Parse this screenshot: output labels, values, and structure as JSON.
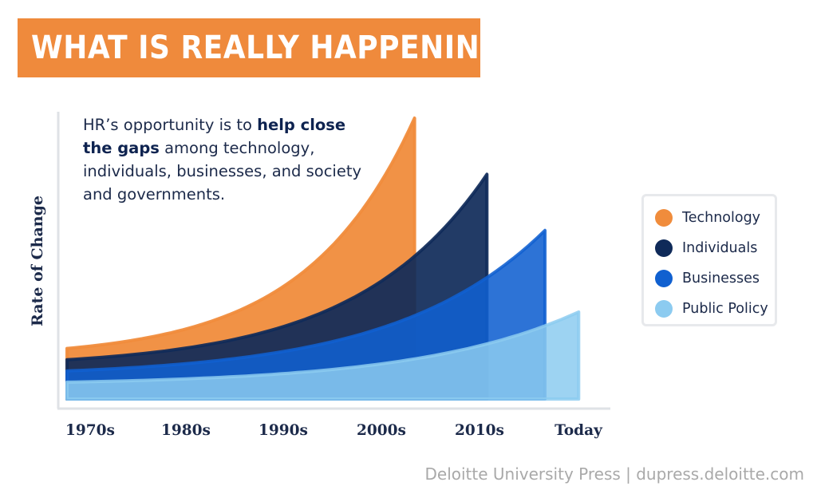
{
  "header": {
    "title": "WHAT IS REALLY HAPPENING?"
  },
  "annotation": {
    "part1": "HR’s opportunity is to ",
    "bold": "help close the gaps",
    "part2": " among technology, individuals, businesses, and society and governments."
  },
  "footer": {
    "credit": "Deloitte University Press | dupress.deloitte.com"
  },
  "colors": {
    "banner": "#ef8a3c",
    "technology": "#f08c3c",
    "individuals": "#0f2a59",
    "businesses": "#1060d0",
    "public_policy": "#8ccbf0"
  },
  "chart_data": {
    "type": "area",
    "title": "",
    "xlabel": "",
    "ylabel": "Rate of Change",
    "categories": [
      "1970s",
      "1980s",
      "1990s",
      "2000s",
      "2010s",
      "Today"
    ],
    "y_values_shown": false,
    "grid": false,
    "legend_position": "right",
    "series": [
      {
        "name": "Technology",
        "color": "#f08c3c",
        "opacity": 0.95,
        "end_x": 3.6,
        "start_rate": 0.18,
        "end_rate": 1.0
      },
      {
        "name": "Individuals",
        "color": "#0f2a59",
        "opacity": 0.92,
        "end_x": 4.35,
        "start_rate": 0.14,
        "end_rate": 0.8
      },
      {
        "name": "Businesses",
        "color": "#1060d0",
        "opacity": 0.88,
        "end_x": 4.95,
        "start_rate": 0.1,
        "end_rate": 0.6
      },
      {
        "name": "Public Policy",
        "color": "#8ccbf0",
        "opacity": 0.85,
        "end_x": 5.3,
        "start_rate": 0.06,
        "end_rate": 0.31
      }
    ]
  }
}
